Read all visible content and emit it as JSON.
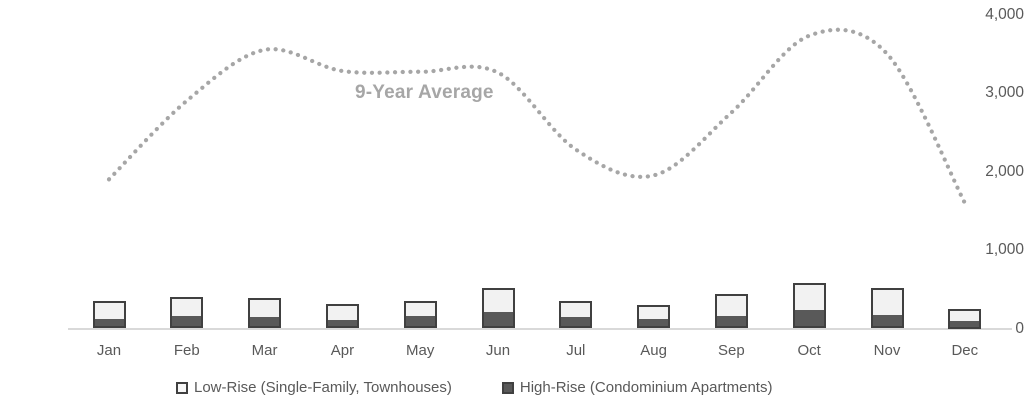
{
  "chart_data": {
    "type": "bar",
    "subtype": "stacked-column-with-dotted-line-overlay",
    "title": "",
    "xlabel": "",
    "ylabel": "",
    "categories": [
      "Jan",
      "Feb",
      "Mar",
      "Apr",
      "May",
      "Jun",
      "Jul",
      "Aug",
      "Sep",
      "Oct",
      "Nov",
      "Dec"
    ],
    "series": [
      {
        "name": "Low-Rise (Single-Family, Townhouses)",
        "role": "bar-upper-segment",
        "color": "#f2f2f2",
        "border_color": "#404040",
        "values": [
          240,
          240,
          240,
          200,
          190,
          300,
          205,
          170,
          280,
          340,
          345,
          160
        ]
      },
      {
        "name": "High-Rise (Condominium Apartments)",
        "role": "bar-lower-segment",
        "color": "#595959",
        "border_color": "#404040",
        "values": [
          115,
          160,
          150,
          110,
          155,
          210,
          145,
          125,
          165,
          235,
          170,
          90
        ]
      },
      {
        "name": "9-Year Average",
        "role": "dotted-line",
        "color": "#a6a6a6",
        "values": [
          1900,
          2900,
          3550,
          3280,
          3270,
          3260,
          2280,
          1950,
          2750,
          3730,
          3500,
          1600
        ]
      }
    ],
    "stacked_totals": [
      355,
      400,
      390,
      310,
      345,
      510,
      350,
      295,
      445,
      575,
      515,
      250
    ],
    "y_axis": {
      "min": 0,
      "max": 4000,
      "tick_interval": 1000,
      "tick_values": [
        0,
        1000,
        2000,
        3000,
        4000
      ],
      "tick_labels": [
        "0",
        "1,000",
        "2,000",
        "3,000",
        "4,000"
      ]
    },
    "grid": false,
    "legend_position": "bottom",
    "annotation": "9-Year Average"
  },
  "legend": {
    "items": [
      {
        "label": "Low-Rise (Single-Family, Townhouses)",
        "swatch": "light"
      },
      {
        "label": "High-Rise (Condominium Apartments)",
        "swatch": "dark"
      }
    ]
  },
  "colors": {
    "axis_line": "#d9d9d9",
    "axis_text": "#595959",
    "line_dotted": "#a6a6a6",
    "bar_light_fill": "#f2f2f2",
    "bar_dark_fill": "#595959",
    "bar_border": "#404040",
    "background": "#ffffff"
  }
}
